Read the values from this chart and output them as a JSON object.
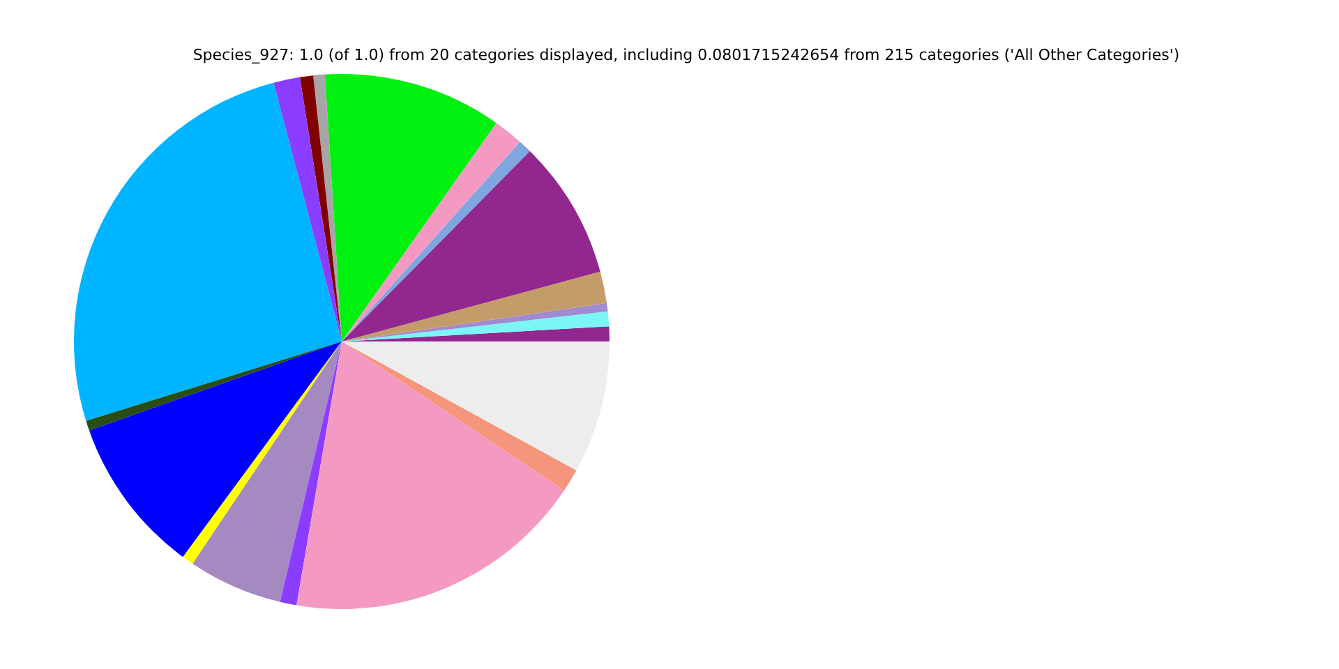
{
  "chart_data": {
    "type": "pie",
    "title": "Species_927: 1.0 (of 1.0) from 20 categories displayed, including 0.0801715242654 from 215 categories ('All Other Categories')",
    "categories": [
      null,
      null,
      null,
      null,
      null,
      null,
      null,
      null,
      null,
      null,
      null,
      null,
      null,
      null,
      null,
      null,
      null,
      null,
      null,
      null
    ],
    "values": [
      0.9,
      0.9,
      0.5,
      1.9,
      8.4,
      0.8,
      1.8,
      10.8,
      0.7,
      0.8,
      1.6,
      25.7,
      0.6,
      9.5,
      0.7,
      5.7,
      1.0,
      18.3,
      1.4,
      8.0
    ],
    "colors": [
      "#92278f",
      "#7bf5f5",
      "#a08ad0",
      "#c49c6a",
      "#92278f",
      "#7ea6e0",
      "#f49ac2",
      "#00f010",
      "#a6a6a6",
      "#800000",
      "#8b3dff",
      "#00b4ff",
      "#2a4d14",
      "#0000ff",
      "#ffff00",
      "#a58ac2",
      "#8b3dff",
      "#f49ac2",
      "#f4957c",
      "#ededed"
    ],
    "legend": false
  }
}
